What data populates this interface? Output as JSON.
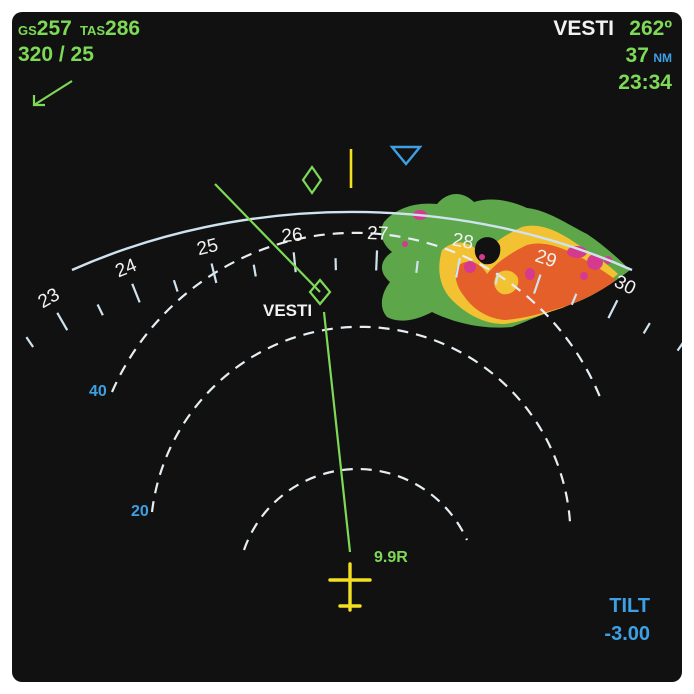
{
  "display": {
    "groundspeed": {
      "label": "GS",
      "value": "257"
    },
    "true_airspeed": {
      "label": "TAS",
      "value": "286"
    },
    "wind": "320 / 25",
    "waypoint": {
      "name": "VESTI",
      "bearing": "262º",
      "distance": "37",
      "distance_unit": "NM",
      "eta": "23:34"
    },
    "tilt": {
      "label": "TILT",
      "value": "-3.00"
    },
    "range_rings": {
      "outer": "40",
      "inner": "20"
    },
    "track_label": "9.9R",
    "map_waypoint_label": "VESTI"
  },
  "compass": {
    "heading_labels": [
      "23",
      "24",
      "25",
      "26",
      "27",
      "28",
      "29",
      "30"
    ],
    "selected_heading_deg": 267,
    "heading_bug_deg": 274.5
  },
  "colors": {
    "background": "#111111",
    "route": "#7ed957",
    "labels_green": "#7ed957",
    "labels_white": "#f2f2f2",
    "labels_blue": "#3ea0e4",
    "aircraft": "#f2e021",
    "compass_arc": "#cfe3ef",
    "weather_green": "#5da64a",
    "weather_yellow": "#f2c233",
    "weather_red": "#e45f2a",
    "weather_magenta": "#d63a8f"
  }
}
